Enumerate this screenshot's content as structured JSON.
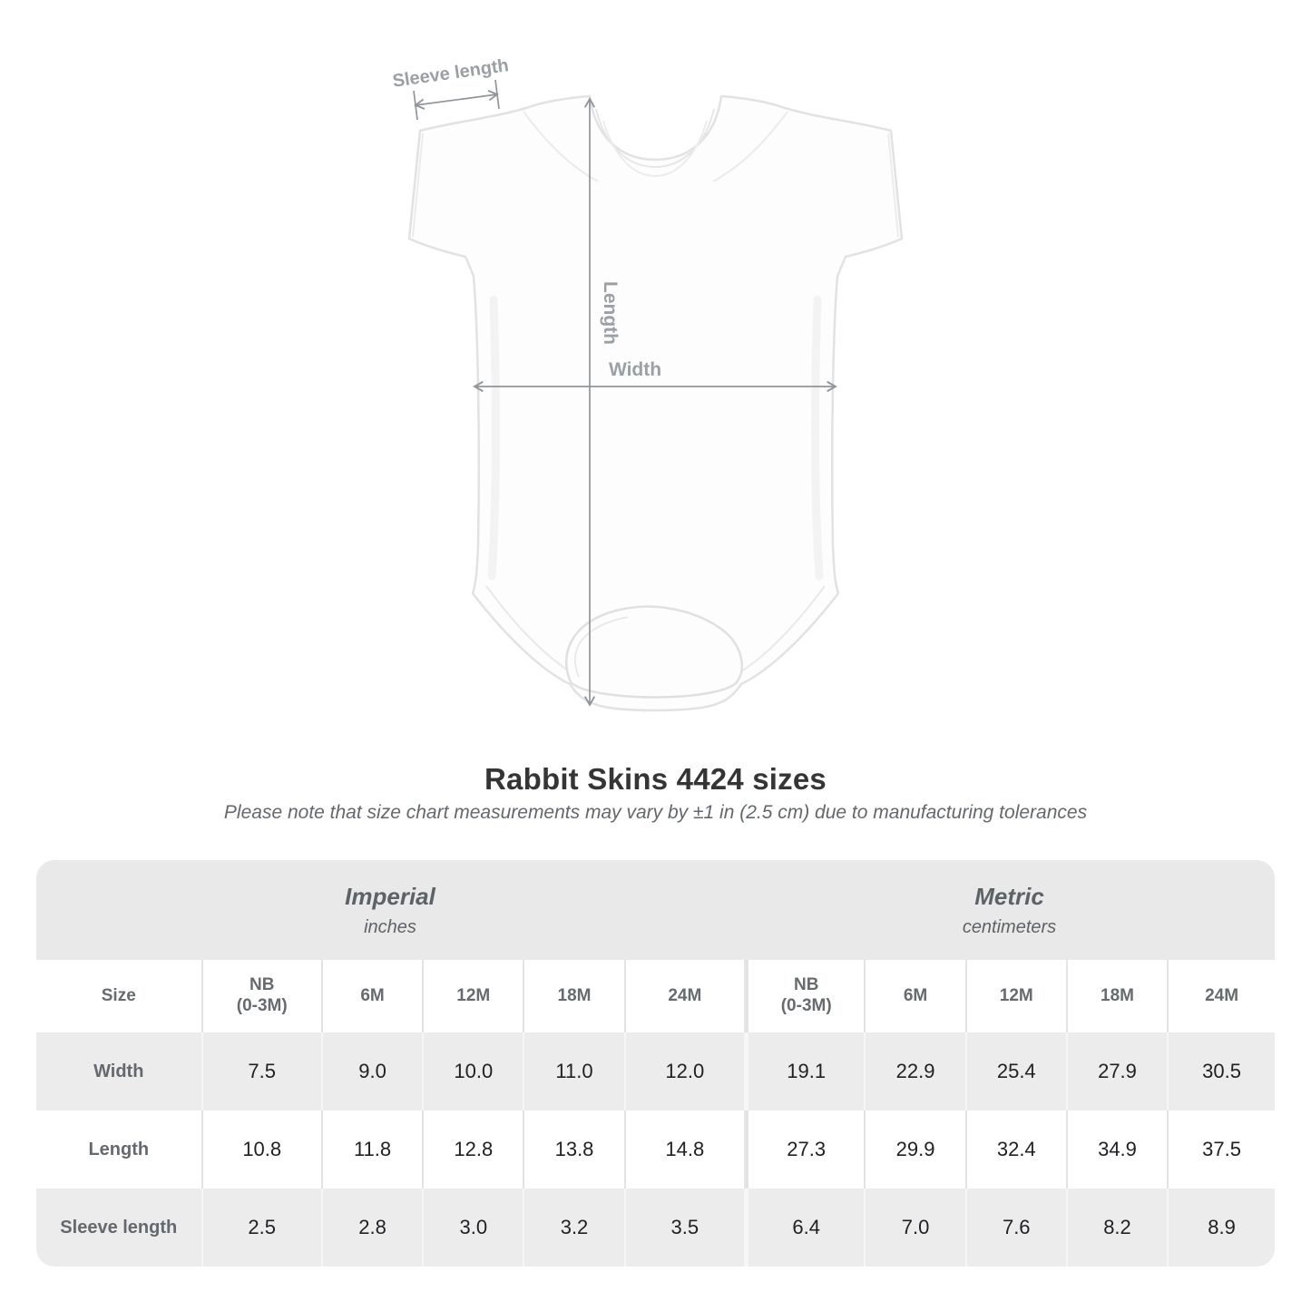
{
  "illustration": {
    "sleeve_label": "Sleeve length",
    "length_label": "Length",
    "width_label": "Width"
  },
  "title": "Rabbit Skins 4424 sizes",
  "subtitle": "Please note that size chart measurements may vary by ±1 in (2.5 cm) due to manufacturing tolerances",
  "chart_data": {
    "type": "table",
    "title": "Rabbit Skins 4424 sizes",
    "size_header": "Size",
    "sections": [
      {
        "name": "Imperial",
        "unit": "inches",
        "columns": [
          "NB\n(0-3M)",
          "6M",
          "12M",
          "18M",
          "24M"
        ]
      },
      {
        "name": "Metric",
        "unit": "centimeters",
        "columns": [
          "NB\n(0-3M)",
          "6M",
          "12M",
          "18M",
          "24M"
        ]
      }
    ],
    "rows": [
      {
        "label": "Width",
        "imperial": [
          "7.5",
          "9.0",
          "10.0",
          "11.0",
          "12.0"
        ],
        "metric": [
          "19.1",
          "22.9",
          "25.4",
          "27.9",
          "30.5"
        ]
      },
      {
        "label": "Length",
        "imperial": [
          "10.8",
          "11.8",
          "12.8",
          "13.8",
          "14.8"
        ],
        "metric": [
          "27.3",
          "29.9",
          "32.4",
          "34.9",
          "37.5"
        ]
      },
      {
        "label": "Sleeve length",
        "imperial": [
          "2.5",
          "2.8",
          "3.0",
          "3.2",
          "3.5"
        ],
        "metric": [
          "6.4",
          "7.0",
          "7.6",
          "8.2",
          "8.9"
        ]
      }
    ]
  },
  "colors": {
    "measurement_label": "#9aa0a3",
    "measurement_line": "#8f9599",
    "band_bg": "#e9e9e9",
    "row_alt_bg": "#ececec",
    "header_text": "#666b6e",
    "value_text": "#202124"
  }
}
